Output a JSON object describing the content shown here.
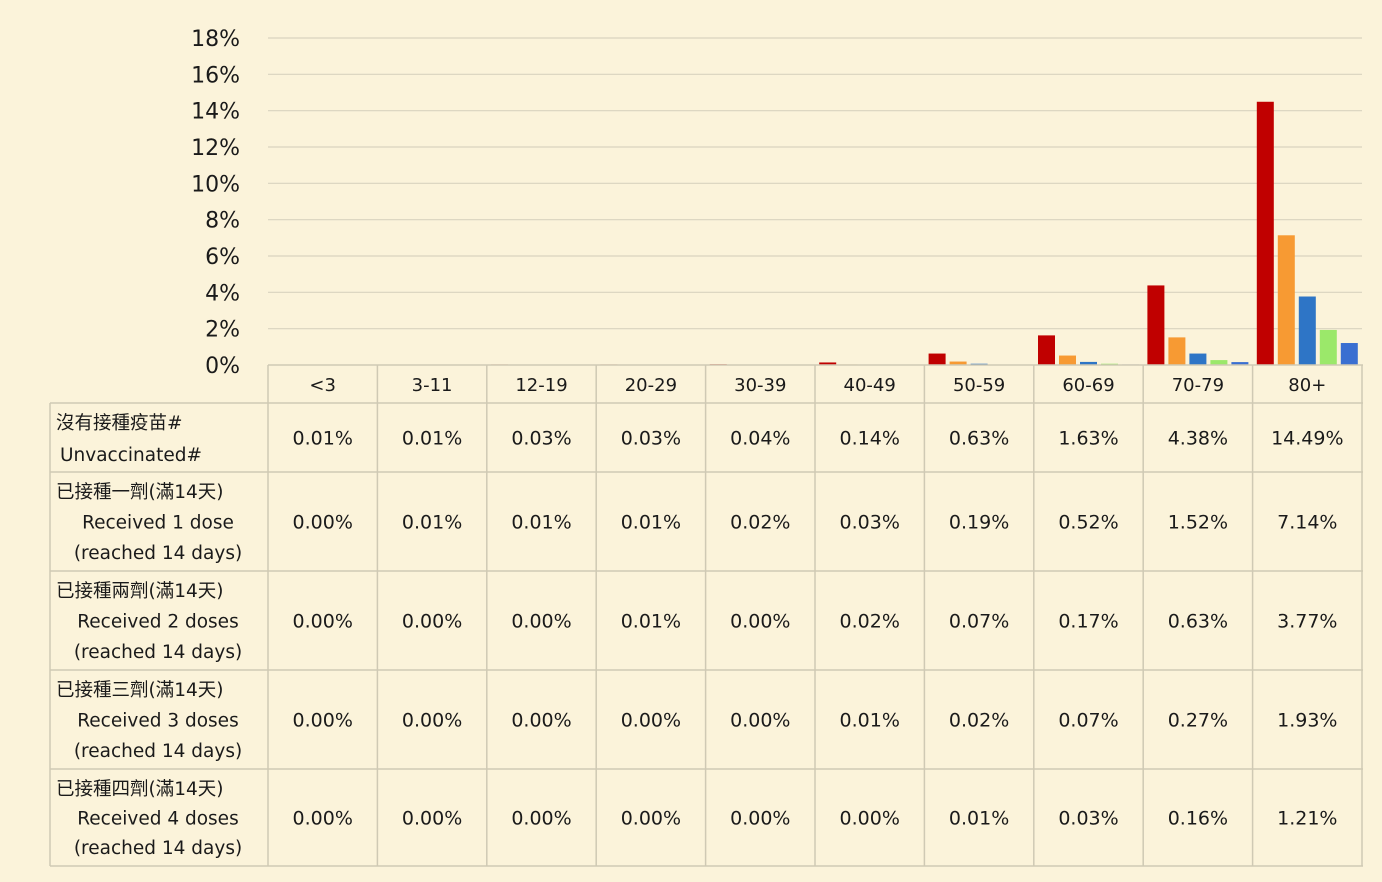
{
  "chart_data": {
    "type": "bar",
    "title": "",
    "xlabel": "",
    "ylabel": "",
    "ylim": [
      0,
      18
    ],
    "y_ticks": [
      "0%",
      "2%",
      "4%",
      "6%",
      "8%",
      "10%",
      "12%",
      "14%",
      "16%",
      "18%"
    ],
    "grid": true,
    "legend": "data-table",
    "categories": [
      "<3",
      "3-11",
      "12-19",
      "20-29",
      "30-39",
      "40-49",
      "50-59",
      "60-69",
      "70-79",
      "80+"
    ],
    "series": [
      {
        "name_zh": "沒有接種疫苗#",
        "name_en": "Unvaccinated#",
        "name_en2": "",
        "color": "#c00000",
        "values": [
          0.01,
          0.01,
          0.03,
          0.03,
          0.04,
          0.14,
          0.63,
          1.63,
          4.38,
          14.49
        ],
        "labels": [
          "0.01%",
          "0.01%",
          "0.03%",
          "0.03%",
          "0.04%",
          "0.14%",
          "0.63%",
          "1.63%",
          "4.38%",
          "14.49%"
        ]
      },
      {
        "name_zh": "已接種一劑(滿14天)",
        "name_en": "Received 1 dose",
        "name_en2": "(reached 14 days)",
        "color": "#f79a33",
        "values": [
          0.0,
          0.01,
          0.01,
          0.01,
          0.02,
          0.03,
          0.19,
          0.52,
          1.52,
          7.14
        ],
        "labels": [
          "0.00%",
          "0.01%",
          "0.01%",
          "0.01%",
          "0.02%",
          "0.03%",
          "0.19%",
          "0.52%",
          "1.52%",
          "7.14%"
        ]
      },
      {
        "name_zh": "已接種兩劑(滿14天)",
        "name_en": "Received 2 doses",
        "name_en2": "(reached 14 days)",
        "color": "#2e75c6",
        "values": [
          0.0,
          0.0,
          0.0,
          0.01,
          0.0,
          0.02,
          0.07,
          0.17,
          0.63,
          3.77
        ],
        "labels": [
          "0.00%",
          "0.00%",
          "0.00%",
          "0.01%",
          "0.00%",
          "0.02%",
          "0.07%",
          "0.17%",
          "0.63%",
          "3.77%"
        ]
      },
      {
        "name_zh": "已接種三劑(滿14天)",
        "name_en": "Received 3 doses",
        "name_en2": "(reached 14 days)",
        "color": "#9be86a",
        "values": [
          0.0,
          0.0,
          0.0,
          0.0,
          0.0,
          0.01,
          0.02,
          0.07,
          0.27,
          1.93
        ],
        "labels": [
          "0.00%",
          "0.00%",
          "0.00%",
          "0.00%",
          "0.00%",
          "0.01%",
          "0.02%",
          "0.07%",
          "0.27%",
          "1.93%"
        ]
      },
      {
        "name_zh": "已接種四劑(滿14天)",
        "name_en": "Received 4 doses",
        "name_en2": "(reached 14 days)",
        "color": "#3a6fd1",
        "values": [
          0.0,
          0.0,
          0.0,
          0.0,
          0.0,
          0.0,
          0.01,
          0.03,
          0.16,
          1.21
        ],
        "labels": [
          "0.00%",
          "0.00%",
          "0.00%",
          "0.00%",
          "0.00%",
          "0.00%",
          "0.01%",
          "0.03%",
          "0.16%",
          "1.21%"
        ]
      }
    ]
  }
}
